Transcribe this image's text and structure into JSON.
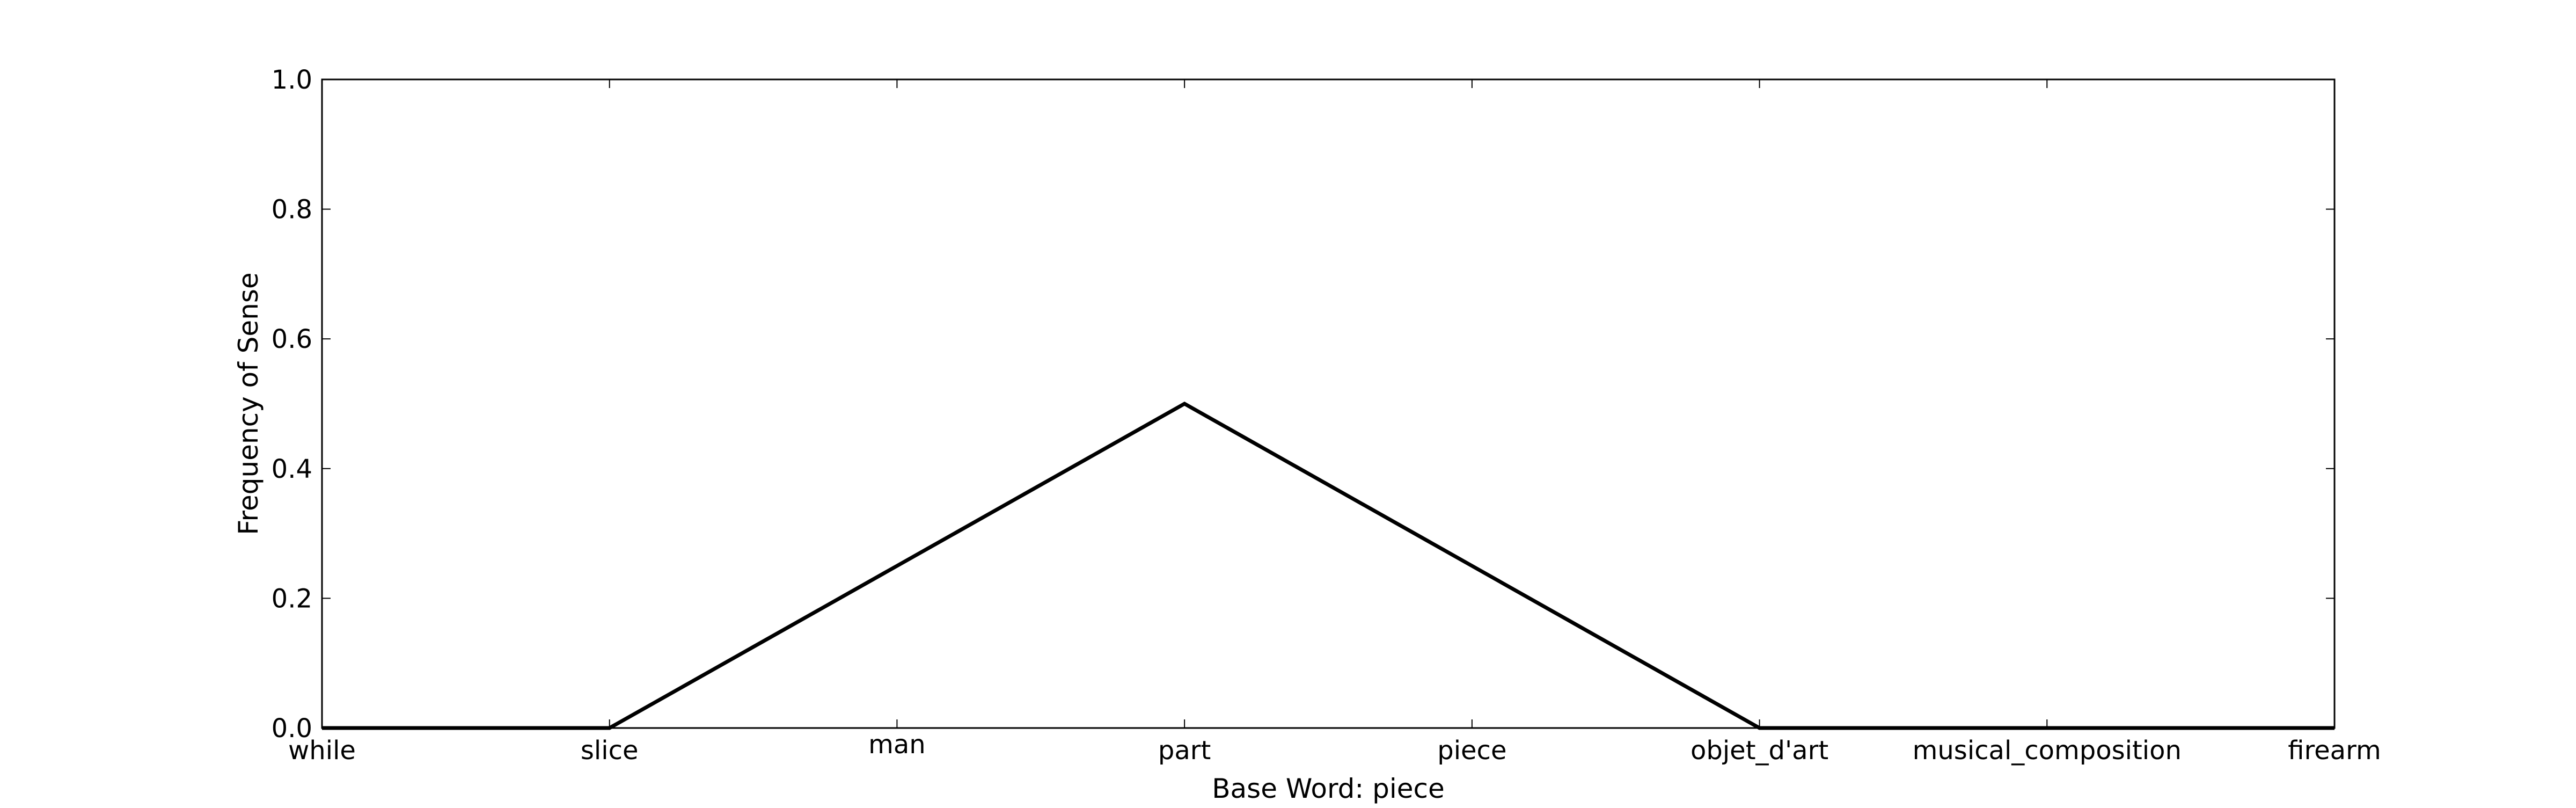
{
  "chart_data": {
    "type": "line",
    "title": "",
    "xlabel": "Base Word: piece",
    "ylabel": "Frequency of Sense",
    "categories": [
      "while",
      "slice",
      "man",
      "part",
      "piece",
      "objet_d'art",
      "musical_composition",
      "firearm"
    ],
    "series": [
      {
        "values": [
          0.0,
          0.0,
          0.25,
          0.5,
          0.25,
          0.0,
          0.0,
          0.0
        ],
        "color": "#000000"
      }
    ],
    "ylim": [
      0.0,
      1.0
    ],
    "yticks": [
      "0.0",
      "0.2",
      "0.4",
      "0.6",
      "0.8",
      "1.0"
    ],
    "grid": false,
    "legend": "none"
  }
}
